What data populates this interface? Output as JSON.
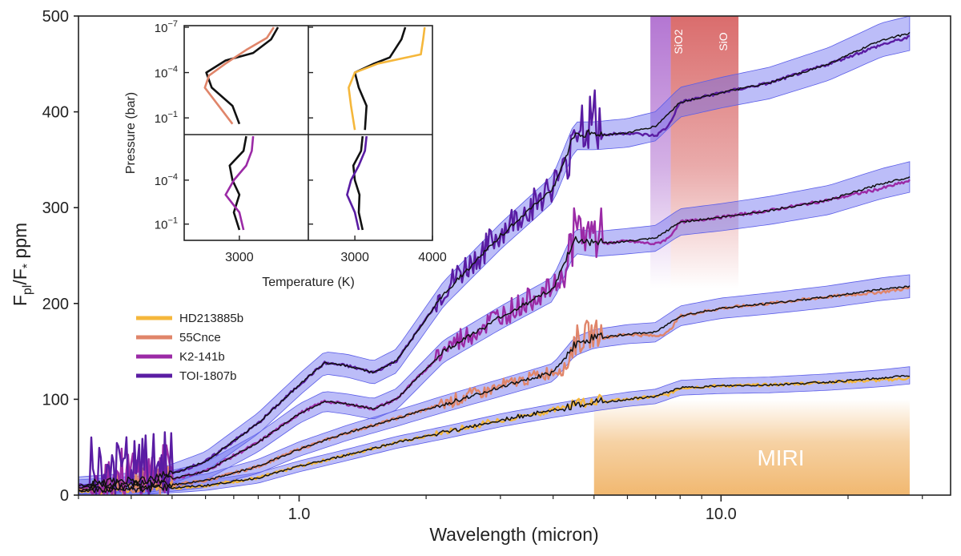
{
  "chart_data": {
    "type": "line",
    "title": "",
    "xlabel": "Wavelength (micron)",
    "ylabel": "F_pl/F_* ppm",
    "ylabel_main": "F",
    "ylabel_sub1": "pl",
    "ylabel_mid": "/F",
    "ylabel_sub2": "*",
    "ylabel_end": " ppm",
    "x_scale": "log",
    "xlim": [
      0.3,
      35
    ],
    "ylim": [
      0,
      500
    ],
    "x_ticks": [
      {
        "value": 1.0,
        "label": "1.0"
      },
      {
        "value": 10.0,
        "label": "10.0"
      }
    ],
    "y_ticks": [
      {
        "value": 0,
        "label": "0"
      },
      {
        "value": 100,
        "label": "100"
      },
      {
        "value": 200,
        "label": "200"
      },
      {
        "value": 300,
        "label": "300"
      },
      {
        "value": 400,
        "label": "400"
      },
      {
        "value": 500,
        "label": "500"
      }
    ],
    "bands": [
      {
        "name": "SiO2",
        "label": "SiO2",
        "x_range": [
          6.8,
          7.6
        ],
        "color": "#b06fd0"
      },
      {
        "name": "SiO",
        "label": "SiO",
        "x_range": [
          7.6,
          11.0
        ],
        "color": "#d86565"
      },
      {
        "name": "MIRI",
        "label": "MIRI",
        "x_range": [
          5.0,
          28.0
        ],
        "y_range": [
          0,
          100
        ],
        "color": "#f0b468"
      }
    ],
    "legend": {
      "position": "left-center",
      "entries": [
        {
          "name": "HD213885b",
          "color": "#f5b73b"
        },
        {
          "name": "55Cnce",
          "color": "#e0856a"
        },
        {
          "name": "K2-141b",
          "color": "#9b2aa6"
        },
        {
          "name": "TOI-1807b",
          "color": "#5a1ca3"
        }
      ]
    },
    "series": [
      {
        "name": "HD213885b",
        "color": "#f5b73b",
        "x": [
          0.3,
          0.45,
          0.6,
          0.8,
          1.0,
          1.3,
          1.7,
          2.2,
          3.0,
          4.0,
          4.5,
          5.0,
          6.0,
          7.0,
          7.5,
          8.0,
          10.0,
          13.0,
          18.0,
          24.0,
          28.0
        ],
        "y": [
          4,
          6,
          10,
          18,
          30,
          42,
          55,
          65,
          78,
          88,
          95,
          97,
          100,
          103,
          105,
          112,
          114,
          115,
          118,
          120,
          122
        ]
      },
      {
        "name": "55Cnce",
        "color": "#e0856a",
        "x": [
          0.3,
          0.45,
          0.6,
          0.8,
          1.0,
          1.3,
          1.7,
          2.2,
          3.0,
          4.0,
          4.3,
          4.5,
          5.0,
          6.0,
          7.0,
          7.5,
          8.0,
          10.0,
          13.0,
          18.0,
          24.0,
          28.0
        ],
        "y": [
          5,
          8,
          15,
          30,
          48,
          65,
          80,
          95,
          112,
          128,
          132,
          155,
          163,
          168,
          166,
          170,
          187,
          195,
          200,
          207,
          212,
          216
        ]
      },
      {
        "name": "K2-141b",
        "color": "#9b2aa6",
        "x": [
          0.3,
          0.45,
          0.6,
          0.8,
          1.0,
          1.15,
          1.3,
          1.5,
          1.7,
          2.2,
          3.0,
          4.0,
          4.3,
          4.5,
          5.0,
          6.0,
          7.0,
          7.5,
          8.0,
          10.0,
          13.0,
          18.0,
          24.0,
          28.0
        ],
        "y": [
          8,
          12,
          25,
          55,
          85,
          98,
          95,
          90,
          100,
          150,
          185,
          215,
          230,
          265,
          262,
          265,
          262,
          268,
          285,
          290,
          297,
          308,
          320,
          328
        ]
      },
      {
        "name": "TOI-1807b",
        "color": "#5a1ca3",
        "x": [
          0.3,
          0.45,
          0.6,
          0.8,
          1.0,
          1.15,
          1.3,
          1.5,
          1.7,
          2.2,
          3.0,
          4.0,
          4.3,
          4.5,
          5.0,
          6.0,
          7.0,
          7.5,
          8.0,
          10.0,
          13.0,
          18.0,
          24.0,
          28.0
        ],
        "y": [
          10,
          15,
          35,
          75,
          115,
          138,
          135,
          128,
          140,
          210,
          270,
          320,
          340,
          375,
          375,
          378,
          375,
          385,
          410,
          420,
          430,
          450,
          470,
          478
        ]
      },
      {
        "name": "model-hd",
        "color": "#000000",
        "x": [
          0.3,
          0.45,
          0.6,
          0.8,
          1.0,
          1.3,
          1.7,
          2.2,
          3.0,
          4.0,
          5.0,
          6.0,
          7.0,
          8.0,
          10.0,
          13.0,
          18.0,
          24.0,
          28.0
        ],
        "y": [
          4,
          6,
          10,
          18,
          30,
          42,
          55,
          65,
          78,
          88,
          95,
          100,
          103,
          112,
          114,
          115,
          118,
          122,
          125
        ]
      },
      {
        "name": "model-55",
        "color": "#000000",
        "x": [
          0.3,
          0.45,
          0.6,
          0.8,
          1.0,
          1.3,
          1.7,
          2.2,
          3.0,
          4.0,
          4.5,
          5.0,
          6.0,
          7.0,
          8.0,
          10.0,
          13.0,
          18.0,
          24.0,
          28.0
        ],
        "y": [
          5,
          8,
          15,
          30,
          48,
          65,
          80,
          95,
          112,
          128,
          155,
          163,
          168,
          170,
          187,
          195,
          200,
          207,
          215,
          218
        ]
      },
      {
        "name": "model-k2",
        "color": "#000000",
        "x": [
          0.3,
          0.45,
          0.6,
          0.8,
          1.0,
          1.15,
          1.3,
          1.5,
          1.7,
          2.2,
          3.0,
          4.0,
          4.5,
          5.0,
          6.0,
          7.0,
          8.0,
          10.0,
          13.0,
          18.0,
          24.0,
          28.0
        ],
        "y": [
          8,
          12,
          25,
          55,
          85,
          98,
          95,
          90,
          100,
          150,
          185,
          215,
          265,
          262,
          265,
          268,
          285,
          290,
          297,
          308,
          325,
          332
        ]
      },
      {
        "name": "model-toi",
        "color": "#000000",
        "x": [
          0.3,
          0.45,
          0.6,
          0.8,
          1.0,
          1.15,
          1.3,
          1.5,
          1.7,
          2.2,
          3.0,
          4.0,
          4.5,
          5.0,
          6.0,
          7.0,
          8.0,
          10.0,
          13.0,
          18.0,
          24.0,
          28.0
        ],
        "y": [
          10,
          15,
          35,
          75,
          115,
          138,
          135,
          128,
          140,
          210,
          270,
          320,
          375,
          375,
          378,
          385,
          410,
          420,
          430,
          450,
          475,
          482
        ]
      }
    ],
    "inset": {
      "xlabel": "Temperature (K)",
      "ylabel": "Pressure (bar)",
      "x_ticks_left": [
        {
          "value": 3000,
          "label": "3000"
        }
      ],
      "x_ticks_right": [
        {
          "value": 3000,
          "label": "3000"
        },
        {
          "value": 4000,
          "label": "4000"
        }
      ],
      "y_ticks": [
        {
          "exp": -7,
          "base": "10",
          "sup": "−7"
        },
        {
          "exp": -4,
          "base": "10",
          "sup": "−4"
        },
        {
          "exp": -1,
          "base": "10",
          "sup": "−1"
        }
      ],
      "panels": [
        {
          "name": "55Cnce",
          "color": "#e0856a",
          "planet_T": [
            3250,
            3200,
            3050,
            2900,
            2780,
            2750,
            2850,
            2950
          ],
          "planet_logP": [
            -7,
            -6.3,
            -5.5,
            -4.6,
            -3.8,
            -3.0,
            -1.8,
            -0.6
          ],
          "model_T": [
            3280,
            3230,
            3100,
            2900,
            2760,
            2800,
            2950,
            3000
          ],
          "model_logP": [
            -7,
            -6.2,
            -5.3,
            -4.8,
            -4.0,
            -3.0,
            -1.8,
            -0.6
          ]
        },
        {
          "name": "HD213885b",
          "color": "#f5b73b",
          "planet_T": [
            3900,
            3880,
            3850,
            3300,
            3000,
            2920,
            2950,
            3000
          ],
          "planet_logP": [
            -7,
            -6.2,
            -5.2,
            -4.6,
            -4.0,
            -3.0,
            -1.8,
            -0.2
          ],
          "model_T": [
            3650,
            3600,
            3450,
            3250,
            3000,
            3050,
            3150,
            3130
          ],
          "model_logP": [
            -7,
            -6.2,
            -5.0,
            -4.6,
            -4.0,
            -3.0,
            -1.8,
            -0.2
          ]
        },
        {
          "name": "K2-141b",
          "color": "#9b2aa6",
          "planet_T": [
            3100,
            3090,
            3050,
            2960,
            2900,
            3000,
            3030
          ],
          "planet_logP": [
            -7,
            -6.0,
            -5.0,
            -4.0,
            -3.0,
            -1.8,
            -0.6
          ],
          "model_T": [
            3050,
            3030,
            2930,
            2950,
            3000,
            2960,
            3000
          ],
          "model_logP": [
            -7,
            -6.0,
            -5.0,
            -4.0,
            -3.0,
            -1.8,
            -0.6
          ]
        },
        {
          "name": "TOI-1807b",
          "color": "#5a1ca3",
          "planet_T": [
            3150,
            3130,
            3050,
            2950,
            2900,
            3000,
            3050
          ],
          "planet_logP": [
            -7,
            -6.0,
            -5.0,
            -4.0,
            -3.0,
            -1.8,
            -0.6
          ],
          "model_T": [
            3100,
            3080,
            2980,
            3000,
            3060,
            3050,
            3100
          ],
          "model_logP": [
            -7,
            -6.0,
            -5.0,
            -4.0,
            -3.0,
            -1.8,
            -0.6
          ]
        }
      ]
    }
  }
}
